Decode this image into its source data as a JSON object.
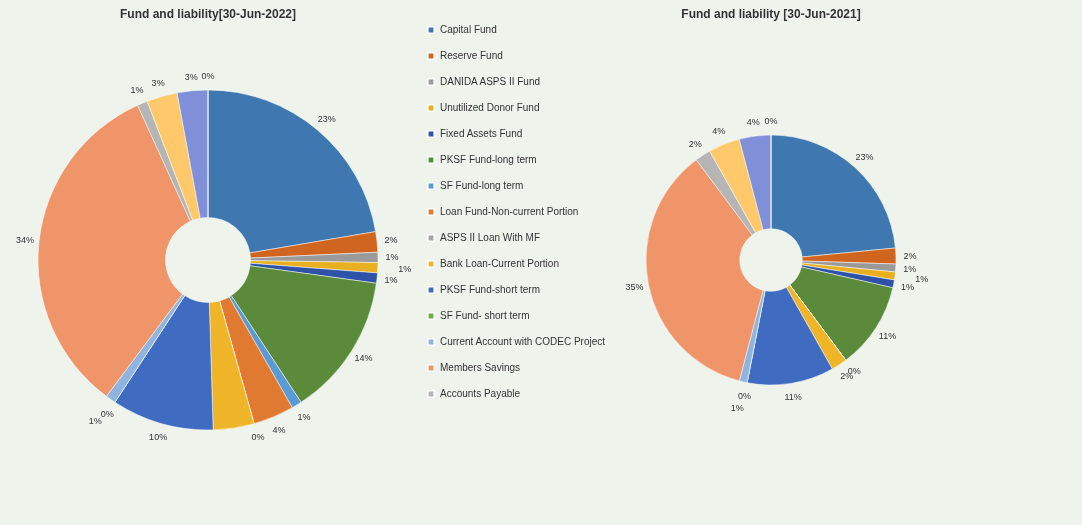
{
  "chart_data": [
    {
      "type": "donut",
      "title": "Fund and liability[30-Jun-2022]",
      "legend": "right",
      "categories": [
        "Capital Fund",
        "Reserve Fund",
        "DANIDA ASPS II Fund",
        "Unutilized Donor Fund",
        "Fixed Assets Fund",
        "PKSF Fund-long term",
        "SF Fund-long term",
        "Loan Fund-Non-current Portion",
        "ASPS II Loan With MF",
        "Bank Loan-Current Portion",
        "PKSF Fund-short term",
        "SF Fund- short term",
        "Current Account with CODEC Project",
        "Members Savings",
        "Accounts Payable",
        null,
        null,
        null
      ],
      "values": [
        23,
        2,
        1,
        1,
        1,
        14,
        1,
        4,
        0,
        4,
        10,
        0,
        1,
        34,
        1,
        3,
        3,
        0
      ],
      "value_labels": [
        "23%",
        "2%",
        "1%",
        "1%",
        "1%",
        "14%",
        "1%",
        "4%",
        "0%",
        null,
        "10%",
        "0%",
        "1%",
        "34%",
        "1%",
        "3%",
        "3%",
        "0%"
      ],
      "colors": [
        "#3f78b0",
        "#d0651f",
        "#9a9a9a",
        "#e8b020",
        "#2e52a8",
        "#5a8a3a",
        "#5b9bd5",
        "#e07a30",
        "#a5a5a5",
        "#f0b428",
        "#3f6cc0",
        "#70ad47",
        "#8fb4e0",
        "#f0956a",
        "#b5b5b5",
        "#ffc86a",
        "#7f8fd8",
        "#a0c0e8"
      ]
    },
    {
      "type": "donut",
      "title": "Fund and liability [30-Jun-2021]",
      "categories": [
        null,
        null,
        null,
        null,
        null,
        null,
        null,
        null,
        null,
        null,
        null,
        null,
        null,
        null,
        null,
        null,
        null,
        null
      ],
      "values": [
        23,
        2,
        1,
        1,
        1,
        11,
        0,
        0,
        0,
        2,
        11,
        0,
        1,
        35,
        2,
        4,
        4,
        0
      ],
      "value_labels": [
        "23%",
        "2%",
        "1%",
        "1%",
        "1%",
        "11%",
        "0%",
        null,
        null,
        "2%",
        "11%",
        "0%",
        "1%",
        "35%",
        "2%",
        "4%",
        "4%",
        "0%"
      ],
      "colors": [
        "#3f78b0",
        "#d0651f",
        "#9a9a9a",
        "#e8b020",
        "#2e52a8",
        "#5a8a3a",
        "#5b9bd5",
        "#e07a30",
        "#a5a5a5",
        "#f0b428",
        "#3f6cc0",
        "#70ad47",
        "#8fb4e0",
        "#f0956a",
        "#b5b5b5",
        "#ffc86a",
        "#7f8fd8",
        "#a0c0e8"
      ]
    }
  ]
}
